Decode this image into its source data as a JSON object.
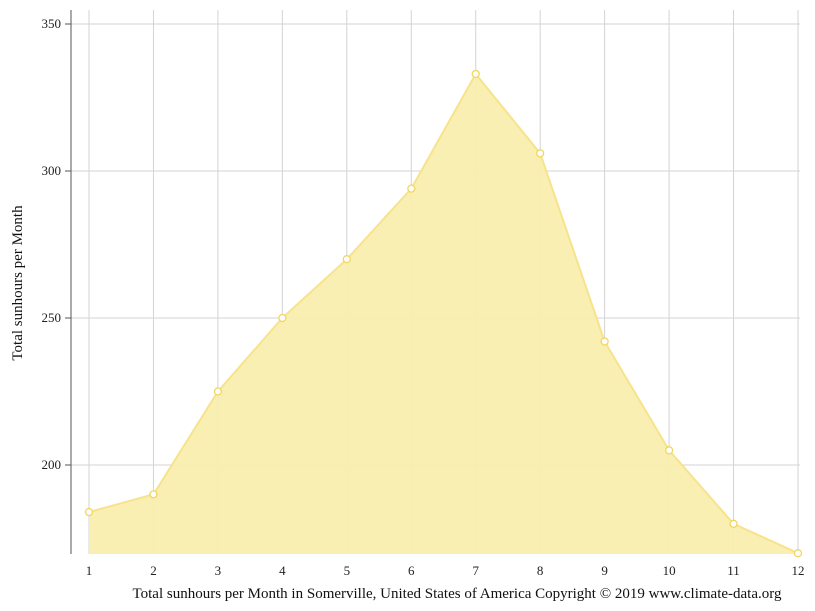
{
  "chart_data": {
    "type": "area",
    "x": [
      1,
      2,
      3,
      4,
      5,
      6,
      7,
      8,
      9,
      10,
      11,
      12
    ],
    "values": [
      184,
      190,
      225,
      250,
      270,
      294,
      333,
      306,
      242,
      205,
      180,
      170
    ],
    "xlabel": "",
    "ylabel": "Total sunhours per Month",
    "caption": "Total sunhours per Month in Somerville, United States of America Copyright © 2019 www.climate-data.org",
    "ylim": [
      170,
      355
    ],
    "yticks": [
      200,
      250,
      300,
      350
    ],
    "grid": true,
    "fill_color": "#f9eeae",
    "line_color": "#f7e38c",
    "marker_edge_color": "#f2d65c",
    "grid_color": "#d3d3d3"
  }
}
